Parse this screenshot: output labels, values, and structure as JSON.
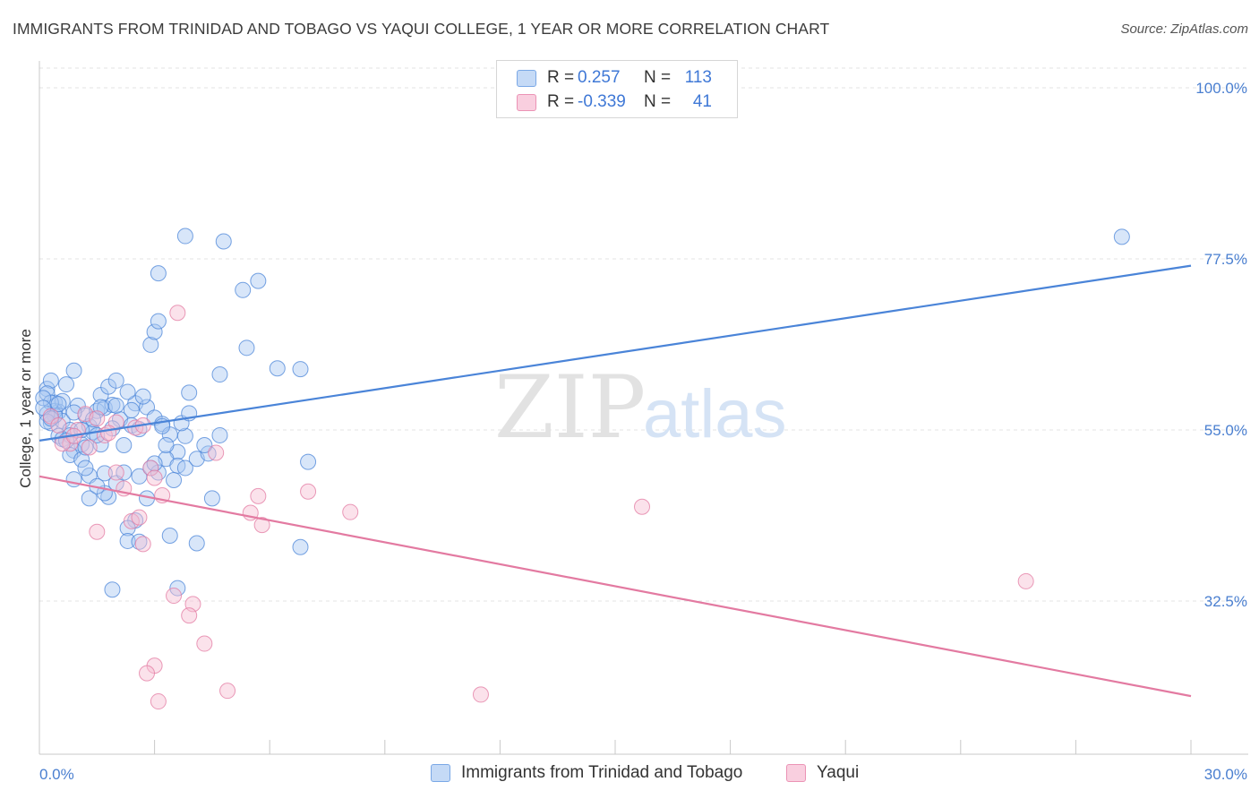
{
  "header": {
    "title": "IMMIGRANTS FROM TRINIDAD AND TOBAGO VS YAQUI COLLEGE, 1 YEAR OR MORE CORRELATION CHART",
    "source": "Source: ZipAtlas.com"
  },
  "watermark": {
    "zip": "ZIP",
    "atlas": "atlas"
  },
  "legend": {
    "rows": [
      {
        "r_label": "R =",
        "r_value": "0.257",
        "n_label": "N =",
        "n_value": "113",
        "color": "#8ab4ec"
      },
      {
        "r_label": "R =",
        "r_value": "-0.339",
        "n_label": "N =",
        "n_value": "41",
        "color": "#f4a9c4"
      }
    ]
  },
  "bottom_legend": [
    {
      "label": "Immigrants from Trinidad and Tobago",
      "color": "#8ab4ec"
    },
    {
      "label": "Yaqui",
      "color": "#f4a9c4"
    }
  ],
  "chart_data": {
    "type": "scatter",
    "title": "IMMIGRANTS FROM TRINIDAD AND TOBAGO VS YAQUI COLLEGE, 1 YEAR OR MORE CORRELATION CHART",
    "xlabel": "",
    "ylabel": "College, 1 year or more",
    "xlim": [
      0,
      30
    ],
    "ylim": [
      10,
      102
    ],
    "x_tick_labels": [
      "0.0%",
      "30.0%"
    ],
    "y_ticks": [
      32.5,
      55.0,
      77.5,
      100.0
    ],
    "y_tick_labels": [
      "32.5%",
      "55.0%",
      "77.5%",
      "100.0%"
    ],
    "series": [
      {
        "name": "Immigrants from Trinidad and Tobago",
        "color": "#4a84d8",
        "fill": "#a9c8f1",
        "trend": {
          "x": [
            0,
            30
          ],
          "y": [
            53.6,
            76.6
          ]
        },
        "points": [
          [
            0.2,
            60.4
          ],
          [
            0.3,
            61.5
          ],
          [
            0.4,
            58.6
          ],
          [
            0.5,
            57.4
          ],
          [
            0.3,
            55.9
          ],
          [
            0.6,
            56.2
          ],
          [
            0.8,
            55.0
          ],
          [
            0.5,
            54.2
          ],
          [
            0.2,
            59.8
          ],
          [
            0.4,
            57.5
          ],
          [
            0.7,
            61.0
          ],
          [
            0.9,
            62.8
          ],
          [
            1.0,
            58.2
          ],
          [
            1.2,
            56.9
          ],
          [
            1.3,
            55.5
          ],
          [
            1.1,
            53.1
          ],
          [
            0.9,
            52.3
          ],
          [
            0.8,
            51.7
          ],
          [
            1.5,
            57.5
          ],
          [
            1.6,
            59.6
          ],
          [
            1.8,
            60.7
          ],
          [
            2.0,
            61.5
          ],
          [
            1.7,
            57.9
          ],
          [
            1.9,
            58.3
          ],
          [
            2.1,
            56.4
          ],
          [
            2.4,
            55.6
          ],
          [
            2.5,
            58.5
          ],
          [
            2.3,
            60.0
          ],
          [
            1.4,
            54.7
          ],
          [
            1.6,
            53.1
          ],
          [
            0.6,
            53.8
          ],
          [
            0.8,
            54.3
          ],
          [
            1.1,
            51.1
          ],
          [
            1.3,
            49.0
          ],
          [
            1.7,
            49.3
          ],
          [
            2.0,
            48.0
          ],
          [
            1.8,
            46.2
          ],
          [
            2.2,
            49.4
          ],
          [
            2.6,
            48.9
          ],
          [
            2.9,
            50.0
          ],
          [
            0.4,
            56.9
          ],
          [
            0.6,
            58.8
          ],
          [
            0.9,
            57.3
          ],
          [
            1.1,
            55.0
          ],
          [
            1.4,
            56.4
          ],
          [
            1.6,
            58.0
          ],
          [
            1.9,
            55.2
          ],
          [
            2.2,
            53.0
          ],
          [
            2.6,
            55.1
          ],
          [
            2.8,
            58.0
          ],
          [
            3.0,
            56.6
          ],
          [
            3.2,
            55.8
          ],
          [
            3.4,
            54.4
          ],
          [
            3.6,
            52.1
          ],
          [
            3.3,
            51.2
          ],
          [
            3.1,
            49.4
          ],
          [
            3.6,
            50.3
          ],
          [
            3.8,
            50.0
          ],
          [
            4.1,
            51.2
          ],
          [
            4.4,
            51.9
          ],
          [
            4.7,
            54.3
          ],
          [
            3.8,
            54.2
          ],
          [
            3.7,
            55.9
          ],
          [
            4.5,
            46.0
          ],
          [
            3.5,
            48.4
          ],
          [
            2.8,
            46.0
          ],
          [
            2.5,
            43.1
          ],
          [
            2.3,
            42.1
          ],
          [
            2.3,
            40.4
          ],
          [
            2.6,
            40.3
          ],
          [
            3.4,
            41.1
          ],
          [
            4.1,
            40.1
          ],
          [
            3.6,
            34.2
          ],
          [
            1.9,
            34.0
          ],
          [
            1.3,
            46.0
          ],
          [
            1.7,
            46.7
          ],
          [
            1.2,
            50.0
          ],
          [
            0.3,
            58.6
          ],
          [
            0.5,
            58.4
          ],
          [
            0.2,
            57.1
          ],
          [
            2.9,
            66.2
          ],
          [
            3.0,
            67.9
          ],
          [
            3.1,
            69.3
          ],
          [
            3.9,
            57.2
          ],
          [
            3.9,
            59.9
          ],
          [
            4.7,
            62.3
          ],
          [
            5.4,
            65.8
          ],
          [
            6.2,
            63.1
          ],
          [
            6.8,
            63.0
          ],
          [
            7.0,
            50.8
          ],
          [
            6.8,
            39.6
          ],
          [
            4.3,
            53.0
          ],
          [
            3.8,
            80.5
          ],
          [
            4.8,
            79.8
          ],
          [
            3.1,
            75.6
          ],
          [
            5.3,
            73.4
          ],
          [
            5.7,
            74.6
          ],
          [
            28.2,
            80.4
          ],
          [
            3.2,
            55.5
          ],
          [
            0.1,
            59.2
          ],
          [
            0.1,
            57.9
          ],
          [
            0.2,
            56.1
          ],
          [
            0.3,
            56.5
          ],
          [
            0.7,
            53.6
          ],
          [
            1.2,
            52.7
          ],
          [
            1.5,
            54.3
          ],
          [
            2.0,
            58.2
          ],
          [
            2.4,
            57.6
          ],
          [
            2.7,
            59.4
          ],
          [
            3.0,
            50.6
          ],
          [
            3.3,
            53.0
          ],
          [
            0.9,
            48.5
          ],
          [
            1.5,
            47.6
          ]
        ]
      },
      {
        "name": "Yaqui",
        "color": "#e37aa1",
        "fill": "#f7bfd3",
        "trend": {
          "x": [
            0,
            30
          ],
          "y": [
            48.9,
            20.0
          ]
        },
        "points": [
          [
            0.3,
            56.8
          ],
          [
            0.5,
            55.6
          ],
          [
            0.8,
            53.2
          ],
          [
            1.0,
            55.0
          ],
          [
            1.2,
            57.1
          ],
          [
            1.5,
            56.5
          ],
          [
            1.7,
            54.3
          ],
          [
            2.0,
            56.0
          ],
          [
            1.8,
            54.6
          ],
          [
            1.3,
            52.7
          ],
          [
            0.6,
            53.2
          ],
          [
            2.5,
            55.3
          ],
          [
            2.7,
            55.6
          ],
          [
            2.9,
            50.0
          ],
          [
            2.0,
            49.4
          ],
          [
            3.0,
            48.7
          ],
          [
            3.2,
            46.4
          ],
          [
            2.2,
            47.3
          ],
          [
            2.4,
            43.0
          ],
          [
            2.6,
            43.5
          ],
          [
            2.7,
            40.0
          ],
          [
            1.5,
            41.6
          ],
          [
            3.6,
            70.4
          ],
          [
            4.6,
            52.0
          ],
          [
            5.7,
            46.3
          ],
          [
            5.5,
            44.1
          ],
          [
            5.8,
            42.5
          ],
          [
            7.0,
            46.9
          ],
          [
            8.1,
            44.2
          ],
          [
            15.7,
            44.9
          ],
          [
            3.5,
            33.2
          ],
          [
            4.0,
            32.1
          ],
          [
            3.9,
            30.6
          ],
          [
            4.3,
            26.9
          ],
          [
            3.0,
            24.0
          ],
          [
            2.8,
            23.0
          ],
          [
            3.1,
            19.3
          ],
          [
            4.9,
            20.7
          ],
          [
            11.5,
            20.2
          ],
          [
            25.7,
            35.1
          ],
          [
            0.9,
            54.2
          ]
        ]
      }
    ]
  }
}
